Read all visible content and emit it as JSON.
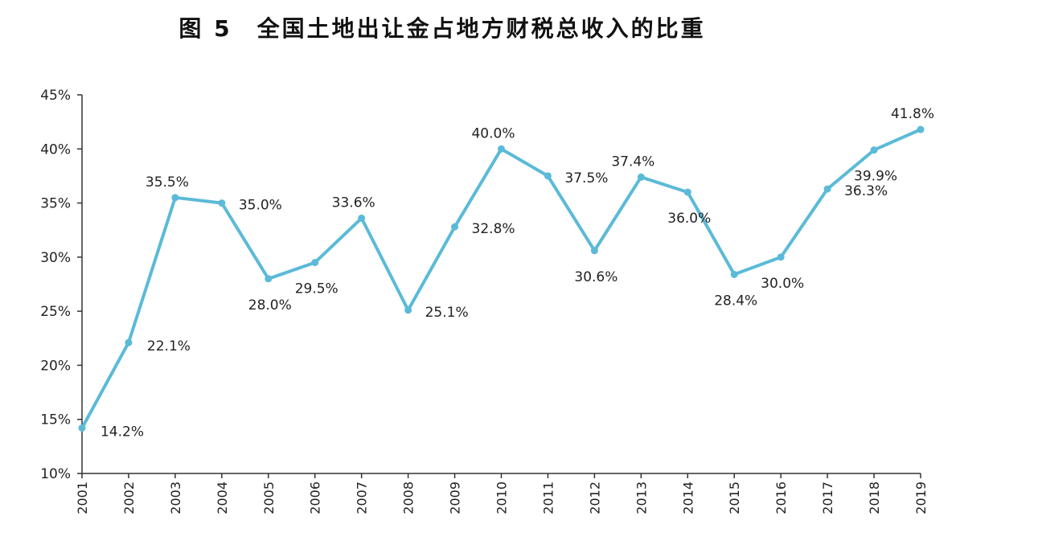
{
  "chart_data": {
    "type": "line",
    "title": "图 5　全国土地出让金占地方财税总收入的比重",
    "xlabel": "",
    "ylabel": "",
    "x": [
      "2001",
      "2002",
      "2003",
      "2004",
      "2005",
      "2006",
      "2007",
      "2008",
      "2009",
      "2010",
      "2011",
      "2012",
      "2013",
      "2014",
      "2015",
      "2016",
      "2017",
      "2018",
      "2019"
    ],
    "series": [
      {
        "values": [
          14.2,
          22.1,
          35.5,
          35.0,
          28.0,
          29.5,
          33.6,
          25.1,
          32.8,
          40.0,
          37.5,
          30.6,
          37.4,
          36.0,
          28.4,
          30.0,
          36.3,
          39.9,
          41.8
        ]
      }
    ],
    "data_labels": [
      "14.2%",
      "22.1%",
      "35.5%",
      "35.0%",
      "28.0%",
      "29.5%",
      "33.6%",
      "25.1%",
      "32.8%",
      "40.0%",
      "37.5%",
      "30.6%",
      "37.4%",
      "36.0%",
      "28.4%",
      "30.0%",
      "36.3%",
      "39.9%",
      "41.8%"
    ],
    "y_ticks": [
      "10%",
      "15%",
      "20%",
      "25%",
      "30%",
      "35%",
      "40%",
      "45%"
    ],
    "ylim": [
      10,
      45
    ],
    "grid": false,
    "legend": "none",
    "colors": {
      "line": "#5bbad8",
      "axis": "#333333"
    }
  }
}
